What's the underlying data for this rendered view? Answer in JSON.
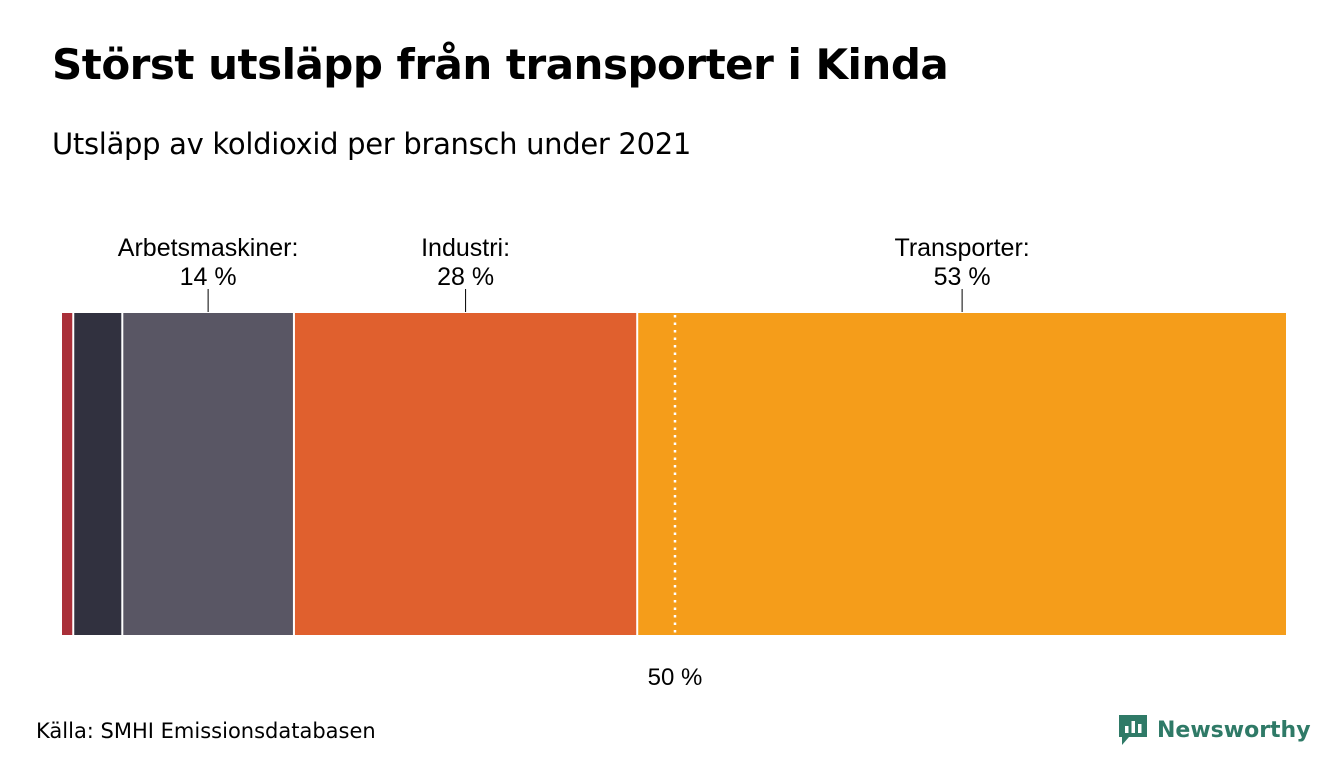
{
  "header": {
    "title": "Störst utsläpp från transporter i Kinda",
    "subtitle": "Utsläpp av koldioxid per bransch under 2021"
  },
  "chart_data": {
    "type": "stacked-bar-100",
    "orientation": "horizontal",
    "xlim": [
      0,
      100
    ],
    "segments": [
      {
        "name": "",
        "value": 1,
        "color": "#a92f39"
      },
      {
        "name": "",
        "value": 4,
        "color": "#31313f"
      },
      {
        "name": "Arbetsmaskiner",
        "value": 14,
        "label": "Arbetsmaskiner:",
        "value_label": "14 %",
        "color": "#595664"
      },
      {
        "name": "Industri",
        "value": 28,
        "label": "Industri:",
        "value_label": "28 %",
        "color": "#e0602e"
      },
      {
        "name": "Transporter",
        "value": 53,
        "label": "Transporter:",
        "value_label": "53 %",
        "color": "#f59d1a"
      }
    ],
    "reference_line": {
      "value": 50,
      "label": "50 %"
    }
  },
  "footer": {
    "source": "Källa: SMHI Emissionsdatabasen",
    "brand": "Newsworthy",
    "brand_color": "#2f7a67"
  }
}
